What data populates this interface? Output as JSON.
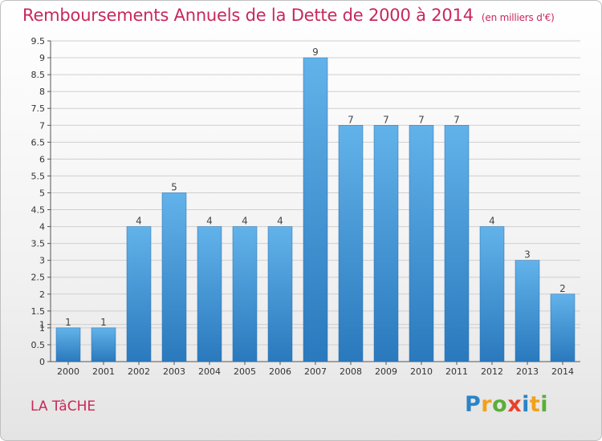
{
  "header": {
    "title": "Remboursements Annuels de la Dette de 2000 à 2014",
    "unit": "(en milliers d'€)"
  },
  "footer": {
    "commune": "LA TâCHE",
    "logo_letters": [
      "P",
      "r",
      "o",
      "x",
      "i",
      "t",
      "i"
    ]
  },
  "colors": {
    "title": "#c8285a",
    "bar_top": "#62b2ea",
    "bar_bottom": "#2a79bd",
    "grid": "#cfcfcf"
  },
  "chart_data": {
    "type": "bar",
    "title": "Remboursements Annuels de la Dette de 2000 à 2014",
    "subtitle": "(en milliers d'€)",
    "categories": [
      "2000",
      "2001",
      "2002",
      "2003",
      "2004",
      "2005",
      "2006",
      "2007",
      "2008",
      "2009",
      "2010",
      "2011",
      "2012",
      "2013",
      "2014"
    ],
    "values": [
      1,
      1,
      4,
      5,
      4,
      4,
      4,
      9,
      7,
      7,
      7,
      7,
      4,
      3,
      2
    ],
    "data_labels": [
      "1",
      "1",
      "4",
      "5",
      "4",
      "4",
      "4",
      "9",
      "7",
      "7",
      "7",
      "7",
      "4",
      "3",
      "2"
    ],
    "y_ticks": [
      "0",
      "0.5",
      "1",
      "1",
      "1.5",
      "2",
      "2.5",
      "3",
      "3.5",
      "4",
      "4.5",
      "5",
      "5.5",
      "6",
      "6.5",
      "7",
      "7.5",
      "8",
      "8.5",
      "9",
      "9.5"
    ],
    "y_tick_values": [
      0,
      0.5,
      1,
      1.1,
      1.5,
      2,
      2.5,
      3,
      3.5,
      4,
      4.5,
      5,
      5.5,
      6,
      6.5,
      7,
      7.5,
      8,
      8.5,
      9,
      9.5
    ],
    "ylim": [
      0,
      9.5
    ],
    "grid": true,
    "legend": "none"
  }
}
